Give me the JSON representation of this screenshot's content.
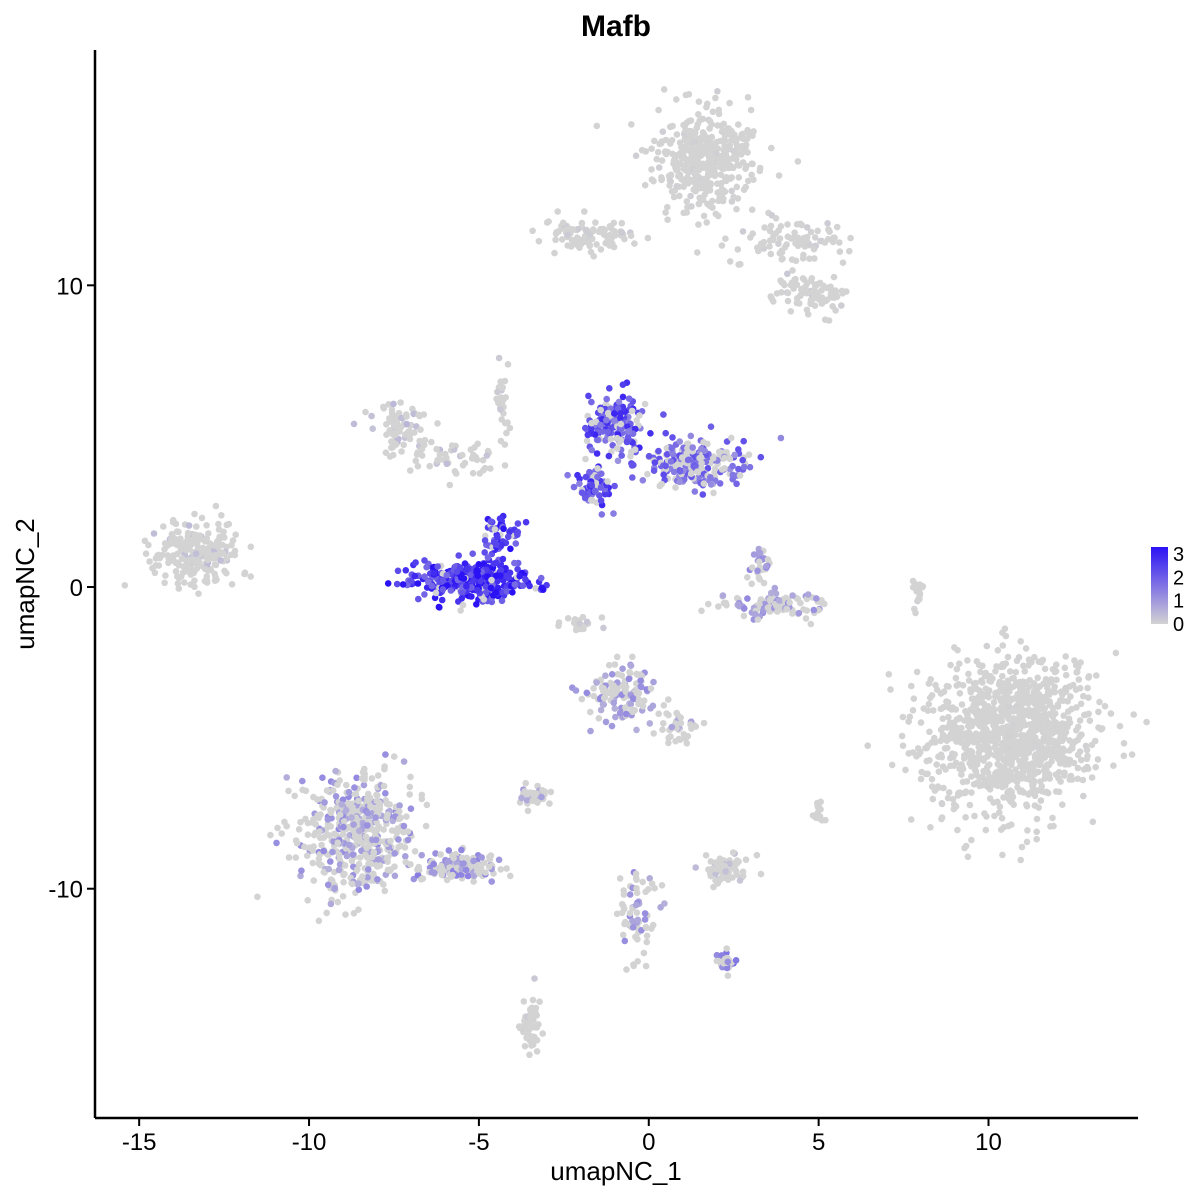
{
  "chart_data": {
    "type": "scatter",
    "title": "Mafb",
    "xlabel": "umapNC_1",
    "ylabel": "umapNC_2",
    "xlim": [
      -16.3,
      14.4
    ],
    "ylim": [
      -17.6,
      17.8
    ],
    "xticks": [
      -15,
      -10,
      -5,
      0,
      5,
      10
    ],
    "xtick_labels": [
      "-15",
      "-10",
      "-5",
      "0",
      "5",
      "10"
    ],
    "yticks": [
      -10,
      0,
      10
    ],
    "ytick_labels": [
      "-10",
      "0",
      "10"
    ],
    "grid": false,
    "legend": {
      "position": "right",
      "type": "colorbar",
      "labels": [
        "3",
        "2",
        "1",
        "0"
      ],
      "values": [
        3,
        2,
        1,
        0
      ],
      "low_color": "#d3d3d3",
      "high_color": "#2b12f5"
    },
    "clusters": [
      {
        "cx": 1.7,
        "cy": 14.2,
        "rx": 1.4,
        "ry": 1.4,
        "n": 420,
        "expr": 0.02
      },
      {
        "cx": -1.6,
        "cy": 11.7,
        "rx": 1.3,
        "ry": 0.45,
        "n": 90,
        "expr": 0.04
      },
      {
        "cx": 4.2,
        "cy": 11.5,
        "rx": 1.6,
        "ry": 0.7,
        "n": 90,
        "expr": 0.03
      },
      {
        "cx": 4.8,
        "cy": 9.7,
        "rx": 1.0,
        "ry": 0.6,
        "n": 90,
        "expr": 0.05
      },
      {
        "cx": -7.3,
        "cy": 5.3,
        "rx": 0.8,
        "ry": 0.8,
        "n": 90,
        "expr": 0.12
      },
      {
        "cx": -5.6,
        "cy": 4.3,
        "rx": 1.2,
        "ry": 0.6,
        "n": 50,
        "expr": 0.1
      },
      {
        "cx": -13.3,
        "cy": 1.1,
        "rx": 1.2,
        "ry": 0.9,
        "n": 240,
        "expr": 0.1
      },
      {
        "cx": -5.2,
        "cy": 0.2,
        "rx": 1.5,
        "ry": 0.6,
        "n": 380,
        "expr": 0.88
      },
      {
        "cx": -4.4,
        "cy": 1.7,
        "rx": 0.5,
        "ry": 0.7,
        "n": 60,
        "expr": 0.8
      },
      {
        "cx": -1.0,
        "cy": 5.4,
        "rx": 0.8,
        "ry": 0.9,
        "n": 190,
        "expr": 0.7
      },
      {
        "cx": 1.3,
        "cy": 4.1,
        "rx": 1.3,
        "ry": 0.7,
        "n": 240,
        "expr": 0.55
      },
      {
        "cx": -1.6,
        "cy": 3.3,
        "rx": 0.5,
        "ry": 0.8,
        "n": 70,
        "expr": 0.7
      },
      {
        "cx": 3.6,
        "cy": -0.6,
        "rx": 1.2,
        "ry": 0.4,
        "n": 110,
        "expr": 0.3
      },
      {
        "cx": 3.3,
        "cy": 0.7,
        "rx": 0.3,
        "ry": 0.6,
        "n": 30,
        "expr": 0.35
      },
      {
        "cx": 10.7,
        "cy": -4.9,
        "rx": 2.2,
        "ry": 2.2,
        "n": 1100,
        "expr": 0.01
      },
      {
        "cx": -0.8,
        "cy": -3.5,
        "rx": 0.9,
        "ry": 0.9,
        "n": 130,
        "expr": 0.3
      },
      {
        "cx": 0.9,
        "cy": -4.6,
        "rx": 0.6,
        "ry": 0.5,
        "n": 40,
        "expr": 0.2
      },
      {
        "cx": -8.6,
        "cy": -8.2,
        "rx": 1.5,
        "ry": 1.7,
        "n": 550,
        "expr": 0.3
      },
      {
        "cx": -5.6,
        "cy": -9.3,
        "rx": 1.2,
        "ry": 0.4,
        "n": 120,
        "expr": 0.35
      },
      {
        "cx": -3.4,
        "cy": -6.9,
        "rx": 0.4,
        "ry": 0.3,
        "n": 40,
        "expr": 0.2
      },
      {
        "cx": 2.3,
        "cy": -9.4,
        "rx": 0.6,
        "ry": 0.4,
        "n": 70,
        "expr": 0.1
      },
      {
        "cx": -0.3,
        "cy": -11.0,
        "rx": 0.5,
        "ry": 1.3,
        "n": 70,
        "expr": 0.3
      },
      {
        "cx": 2.3,
        "cy": -12.4,
        "rx": 0.3,
        "ry": 0.3,
        "n": 30,
        "expr": 0.45
      },
      {
        "cx": -3.5,
        "cy": -14.5,
        "rx": 0.25,
        "ry": 0.8,
        "n": 60,
        "expr": 0.05
      },
      {
        "cx": 5.0,
        "cy": -7.4,
        "rx": 0.2,
        "ry": 0.3,
        "n": 15,
        "expr": 0.05
      },
      {
        "cx": 7.9,
        "cy": -0.3,
        "rx": 0.15,
        "ry": 0.5,
        "n": 15,
        "expr": 0.02
      },
      {
        "cx": -2.0,
        "cy": -1.2,
        "rx": 0.7,
        "ry": 0.2,
        "n": 20,
        "expr": 0.05
      },
      {
        "cx": -4.3,
        "cy": 6.2,
        "rx": 0.2,
        "ry": 0.9,
        "n": 25,
        "expr": 0.05
      }
    ]
  }
}
